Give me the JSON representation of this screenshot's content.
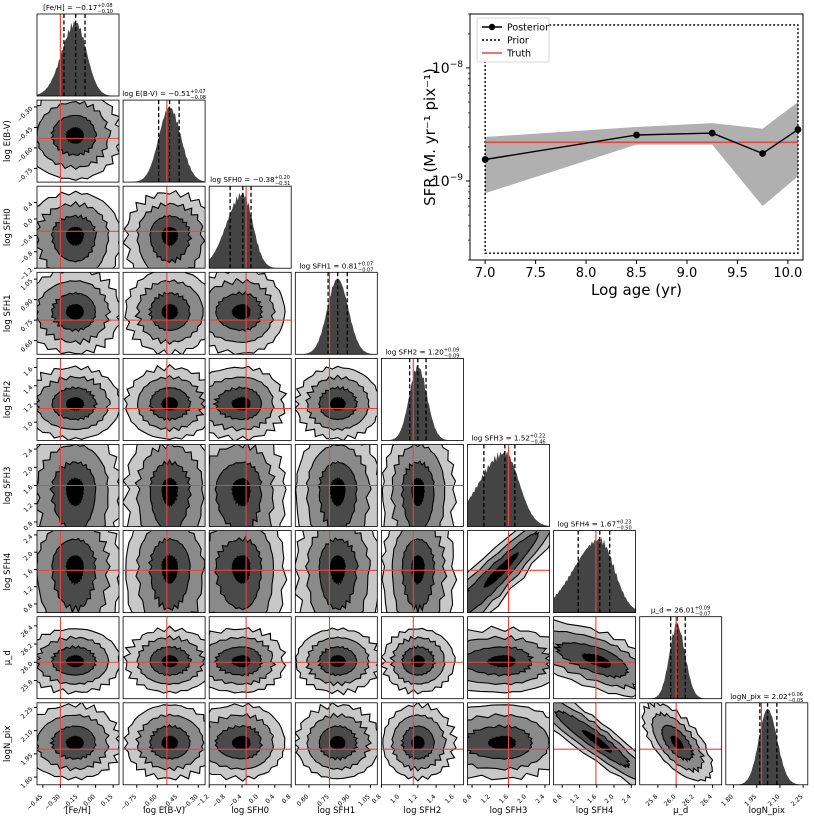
{
  "chart_data": [
    {
      "type": "corner",
      "parameters": [
        "[Fe/H]",
        "E(B-V)",
        "SFH0",
        "SFH1",
        "SFH2",
        "SFH3",
        "SFH4",
        "mu_d",
        "Npix"
      ],
      "axis_labels": [
        "[Fe/H]",
        "log E(B-V)",
        "log SFH0",
        "log SFH1",
        "log SFH2",
        "log SFH3",
        "log SFH4",
        "μ_d",
        "logN_pix"
      ],
      "y_axis_labels": [
        "",
        "log E(B-V)",
        "log SFH0",
        "log SFH1",
        "log SFH2",
        "log SFH3",
        "log SFH4",
        "μ_d",
        "logN_pix"
      ],
      "panel_titles": [
        {
          "text": "[Fe/H] = −0.17",
          "sup": "+0.08",
          "sub": "−0.10"
        },
        {
          "text": "log E(B-V) = −0.51",
          "sup": "+0.07",
          "sub": "−0.08"
        },
        {
          "text": "log SFH0 = −0.38",
          "sup": "+0.20",
          "sub": "−0.31"
        },
        {
          "text": "log SFH1 = 0.81",
          "sup": "+0.07",
          "sub": "−0.07"
        },
        {
          "text": "log SFH2 = 1.20",
          "sup": "+0.09",
          "sub": "−0.09"
        },
        {
          "text": "log SFH3 = 1.52",
          "sup": "+0.22",
          "sub": "−0.46"
        },
        {
          "text": "log SFH4 = 1.67",
          "sup": "+0.23",
          "sub": "−0.50"
        },
        {
          "text": "μ_d = 26.01",
          "sup": "+0.09",
          "sub": "−0.07"
        },
        {
          "text": "logN_pix = 2.02",
          "sup": "+0.06",
          "sub": "−0.05"
        }
      ],
      "ranges": [
        [
          -0.5,
          0.2
        ],
        [
          -0.85,
          -0.25
        ],
        [
          -1.2,
          0.8
        ],
        [
          0.5,
          1.1
        ],
        [
          0.8,
          1.7
        ],
        [
          0.7,
          2.5
        ],
        [
          0.6,
          2.5
        ],
        [
          25.6,
          26.5
        ],
        [
          1.75,
          2.28
        ]
      ],
      "ticks": [
        [
          "−0.45",
          "−0.30",
          "−0.15",
          "0.00",
          "0.15"
        ],
        [
          "−0.75",
          "−0.60",
          "−0.45",
          "−0.30"
        ],
        [
          "−1.2",
          "−0.8",
          "−0.4",
          "0.0",
          "0.4",
          "0.8"
        ],
        [
          "0.60",
          "0.75",
          "0.90",
          "1.05"
        ],
        [
          "0.8",
          "1.0",
          "1.2",
          "1.4",
          "1.6"
        ],
        [
          "0.8",
          "1.2",
          "1.6",
          "2.0",
          "2.4"
        ],
        [
          "0.8",
          "1.2",
          "1.6",
          "2.0",
          "2.4"
        ],
        [
          "25.8",
          "26.0",
          "26.2",
          "26.4"
        ],
        [
          "1.80",
          "1.95",
          "2.10",
          "2.25"
        ]
      ],
      "y_ticks": [
        [],
        [
          "−0.75",
          "−0.60",
          "−0.45",
          "−0.30"
        ],
        [
          "−1.2",
          "−0.8",
          "−0.4",
          "0.0",
          "0.4"
        ],
        [
          "0.60",
          "0.75",
          "0.90",
          "1.05"
        ],
        [
          "1.0",
          "1.2",
          "1.4",
          "1.6"
        ],
        [
          "0.8",
          "1.2",
          "1.6",
          "2.0",
          "2.4"
        ],
        [
          "0.8",
          "1.2",
          "1.6",
          "2.0",
          "2.4"
        ],
        [
          "25.8",
          "26.0",
          "26.2",
          "26.4"
        ],
        [
          "1.80",
          "1.95",
          "2.10",
          "2.25"
        ]
      ],
      "medians": [
        -0.17,
        -0.51,
        -0.38,
        0.81,
        1.2,
        1.52,
        1.67,
        26.01,
        2.02
      ],
      "err_plus": [
        0.08,
        0.07,
        0.2,
        0.07,
        0.09,
        0.22,
        0.23,
        0.09,
        0.06
      ],
      "err_minus": [
        0.1,
        0.08,
        0.31,
        0.07,
        0.09,
        0.46,
        0.5,
        0.07,
        0.05
      ],
      "truths": [
        -0.3,
        -0.53,
        -0.3,
        0.75,
        1.15,
        1.6,
        1.58,
        26.0,
        1.98
      ],
      "truth_color": "#e8463a",
      "contour_colors": [
        "#c8c8c8",
        "#8a8a8a",
        "#4a4a4a",
        "#000000"
      ],
      "hist_color": "#444444"
    },
    {
      "type": "line",
      "xlabel": "Log age (yr)",
      "ylabel": "SFR (M. yr⁻¹ pix⁻¹)",
      "ylog": true,
      "x_ticks": [
        "7.0",
        "7.5",
        "8.0",
        "8.5",
        "9.0",
        "9.5",
        "10.0"
      ],
      "y_ticks": [
        {
          "base": "10",
          "exp": "−8"
        },
        {
          "base": "10",
          "exp": "−9"
        }
      ],
      "xlim": [
        6.85,
        10.15
      ],
      "ylim": [
        2e-10,
        3e-08
      ],
      "legend": [
        "Posterior",
        "Prior",
        "Truth"
      ],
      "legend_position": "top-left",
      "series": [
        {
          "name": "Posterior",
          "x": [
            7.0,
            8.5,
            9.25,
            9.75,
            10.1
          ],
          "y": [
            1.55e-09,
            2.55e-09,
            2.65e-09,
            1.75e-09,
            2.85e-09
          ]
        },
        {
          "name": "Truth",
          "x": [
            7.0,
            10.1
          ],
          "y": [
            2.2e-09,
            2.2e-09
          ]
        }
      ],
      "band": {
        "x": [
          7.0,
          8.5,
          9.25,
          9.75,
          10.1
        ],
        "low": [
          7.8e-10,
          2.1e-09,
          2.1e-09,
          6e-10,
          1.1e-09
        ],
        "high": [
          2.45e-09,
          3e-09,
          3.25e-09,
          2.9e-09,
          5e-09
        ]
      },
      "prior_box": {
        "x": [
          7.0,
          10.1
        ],
        "y": [
          2.3e-10,
          2.4e-08
        ]
      },
      "colors": {
        "posterior": "#000000",
        "band": "#b0b0b0",
        "truth": "#e8463a",
        "prior": "#000000"
      }
    }
  ]
}
